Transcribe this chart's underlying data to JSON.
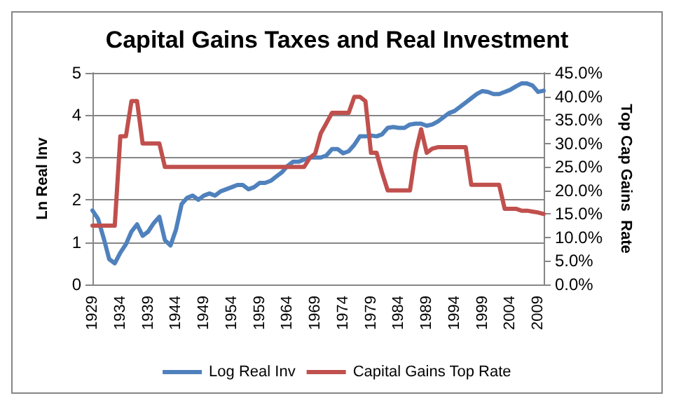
{
  "chart_data": {
    "type": "line",
    "title": "Capital Gains Taxes and Real Investment",
    "ylabel": "Ln Real Inv",
    "y2label": "Top Cap Gains  Rate",
    "categories": [
      "1929",
      null,
      null,
      null,
      null,
      "1934",
      null,
      null,
      null,
      null,
      "1939",
      null,
      null,
      null,
      null,
      "1944",
      null,
      null,
      null,
      null,
      "1949",
      null,
      null,
      null,
      null,
      "1954",
      null,
      null,
      null,
      null,
      "1959",
      null,
      null,
      null,
      null,
      "1964",
      null,
      null,
      null,
      null,
      "1969",
      null,
      null,
      null,
      null,
      "1974",
      null,
      null,
      null,
      null,
      "1979",
      null,
      null,
      null,
      null,
      "1984",
      null,
      null,
      null,
      null,
      "1989",
      null,
      null,
      null,
      null,
      "1994",
      null,
      null,
      null,
      null,
      "1999",
      null,
      null,
      null,
      null,
      "2004",
      null,
      null,
      null,
      null,
      "2009",
      null
    ],
    "series": [
      {
        "name": "Log Real Inv",
        "color": "#4f81bd",
        "values": [
          1.75,
          1.55,
          1.1,
          0.6,
          0.5,
          0.75,
          0.95,
          1.25,
          1.42,
          1.15,
          1.25,
          1.45,
          1.6,
          1.05,
          0.92,
          1.3,
          1.9,
          2.05,
          2.1,
          2.0,
          2.1,
          2.15,
          2.1,
          2.2,
          2.25,
          2.3,
          2.35,
          2.35,
          2.25,
          2.3,
          2.4,
          2.4,
          2.45,
          2.55,
          2.65,
          2.8,
          2.9,
          2.9,
          2.95,
          3.0,
          3.0,
          3.0,
          3.05,
          3.2,
          3.2,
          3.1,
          3.15,
          3.3,
          3.5,
          3.5,
          3.52,
          3.5,
          3.55,
          3.7,
          3.72,
          3.7,
          3.7,
          3.78,
          3.8,
          3.8,
          3.75,
          3.78,
          3.85,
          3.95,
          4.05,
          4.1,
          4.2,
          4.3,
          4.4,
          4.5,
          4.57,
          4.55,
          4.5,
          4.5,
          4.55,
          4.6,
          4.68,
          4.75,
          4.75,
          4.7,
          4.55,
          4.58
        ]
      },
      {
        "name": "Capital Gains Top Rate",
        "color": "#c0504d",
        "axis": "y2",
        "values": [
          12.5,
          12.5,
          12.5,
          12.5,
          12.5,
          31.5,
          31.5,
          39,
          39,
          30,
          30,
          30,
          30,
          25,
          25,
          25,
          25,
          25,
          25,
          25,
          25,
          25,
          25,
          25,
          25,
          25,
          25,
          25,
          25,
          25,
          25,
          25,
          25,
          25,
          25,
          25,
          25,
          25,
          25,
          26.9,
          27.9,
          32.2,
          34.3,
          36.5,
          36.5,
          36.5,
          36.5,
          39.9,
          39.9,
          39,
          28,
          28,
          23.7,
          20,
          20,
          20,
          20,
          20,
          28,
          33,
          28,
          28.9,
          29.2,
          29.2,
          29.2,
          29.2,
          29.2,
          29.2,
          21.2,
          21.2,
          21.2,
          21.2,
          21.2,
          21.2,
          16.1,
          16.1,
          16.1,
          15.7,
          15.7,
          15.5,
          15.3,
          15
        ]
      }
    ],
    "ylim": [
      0,
      5
    ],
    "yticks": [
      0,
      1,
      2,
      3,
      4,
      5
    ],
    "y2lim": [
      0,
      45
    ],
    "y2ticks": [
      {
        "value": 0,
        "label": "0.0%"
      },
      {
        "value": 5,
        "label": "5.0%"
      },
      {
        "value": 10,
        "label": "10.0%"
      },
      {
        "value": 15,
        "label": "15.0%"
      },
      {
        "value": 20,
        "label": "20.0%"
      },
      {
        "value": 25,
        "label": "25.0%"
      },
      {
        "value": 30,
        "label": "30.0%"
      },
      {
        "value": 35,
        "label": "35.0%"
      },
      {
        "value": 40,
        "label": "40.0%"
      },
      {
        "value": 45,
        "label": "45.0%"
      }
    ],
    "grid": "y",
    "legend": "bottom",
    "marker": "none",
    "line_style": "solid"
  }
}
